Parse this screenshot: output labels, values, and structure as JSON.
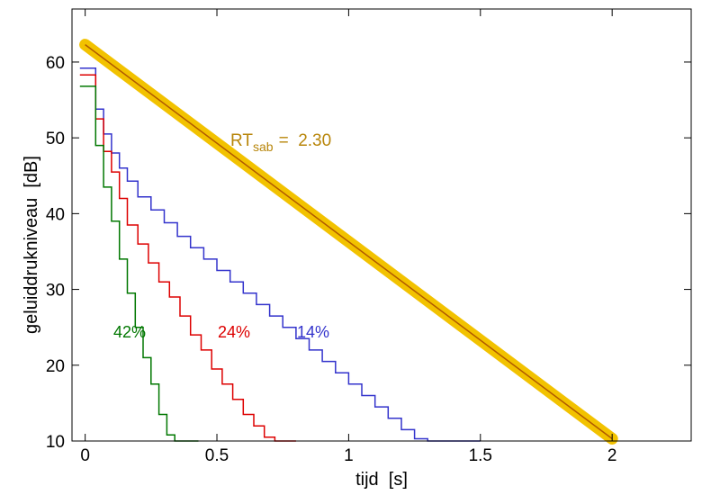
{
  "chart_data": {
    "type": "line",
    "xlabel": "tijd  [s]",
    "ylabel": "geluiddrukniveau  [dB]",
    "xlim": [
      -0.05,
      2.3
    ],
    "ylim": [
      10,
      67
    ],
    "x_ticks": [
      0,
      0.5,
      1,
      1.5,
      2
    ],
    "x_tick_labels": [
      "0",
      "0.5",
      "1",
      "1.5",
      "2"
    ],
    "y_ticks": [
      10,
      20,
      30,
      40,
      50,
      60
    ],
    "y_tick_labels": [
      "10",
      "20",
      "30",
      "40",
      "50",
      "60"
    ],
    "grid": false,
    "series": [
      {
        "name": "14%",
        "label_text": "14%",
        "color": "#3333cc",
        "style": "step",
        "x": [
          -0.02,
          0.04,
          0.04,
          0.07,
          0.07,
          0.1,
          0.1,
          0.13,
          0.13,
          0.16,
          0.16,
          0.2,
          0.2,
          0.25,
          0.25,
          0.3,
          0.3,
          0.35,
          0.35,
          0.4,
          0.4,
          0.45,
          0.45,
          0.5,
          0.5,
          0.55,
          0.55,
          0.6,
          0.6,
          0.65,
          0.65,
          0.7,
          0.7,
          0.75,
          0.75,
          0.8,
          0.8,
          0.85,
          0.85,
          0.9,
          0.9,
          0.95,
          0.95,
          1.0,
          1.0,
          1.05,
          1.05,
          1.1,
          1.1,
          1.15,
          1.15,
          1.2,
          1.2,
          1.25,
          1.25,
          1.3,
          1.3,
          1.35,
          1.35,
          1.4,
          1.4,
          1.45,
          1.45,
          1.5
        ],
        "y": [
          59.2,
          59.2,
          53.8,
          53.8,
          50.5,
          50.5,
          48.0,
          48.0,
          46.0,
          46.0,
          44.3,
          44.3,
          42.2,
          42.2,
          40.5,
          40.5,
          38.8,
          38.8,
          37.0,
          37.0,
          35.5,
          35.5,
          34.0,
          34.0,
          32.5,
          32.5,
          31.0,
          31.0,
          29.5,
          29.5,
          28.0,
          28.0,
          26.5,
          26.5,
          25.0,
          25.0,
          23.5,
          23.5,
          22.0,
          22.0,
          20.5,
          20.5,
          19.0,
          19.0,
          17.5,
          17.5,
          16.0,
          16.0,
          14.5,
          14.5,
          13.0,
          13.0,
          11.5,
          11.5,
          10.3,
          10.3,
          10.0,
          10.0,
          10.0,
          10.0,
          10.0,
          10.0,
          10.0,
          10.0
        ]
      },
      {
        "name": "24%",
        "label_text": "24%",
        "color": "#dd0000",
        "style": "step",
        "x": [
          -0.02,
          0.04,
          0.04,
          0.07,
          0.07,
          0.1,
          0.1,
          0.13,
          0.13,
          0.16,
          0.16,
          0.2,
          0.2,
          0.24,
          0.24,
          0.28,
          0.28,
          0.32,
          0.32,
          0.36,
          0.36,
          0.4,
          0.4,
          0.44,
          0.44,
          0.48,
          0.48,
          0.52,
          0.52,
          0.56,
          0.56,
          0.6,
          0.6,
          0.64,
          0.64,
          0.68,
          0.68,
          0.72,
          0.72,
          0.76,
          0.76,
          0.8
        ],
        "y": [
          58.3,
          58.3,
          52.5,
          52.5,
          48.2,
          48.2,
          45.5,
          45.5,
          42.0,
          42.0,
          38.5,
          38.5,
          36.0,
          36.0,
          33.5,
          33.5,
          31.0,
          31.0,
          29.0,
          29.0,
          26.5,
          26.5,
          24.0,
          24.0,
          22.0,
          22.0,
          19.5,
          19.5,
          17.5,
          17.5,
          15.5,
          15.5,
          13.5,
          13.5,
          12.0,
          12.0,
          10.5,
          10.5,
          10.0,
          10.0,
          10.0,
          10.0
        ]
      },
      {
        "name": "42%",
        "label_text": "42%",
        "color": "#007700",
        "style": "step",
        "x": [
          -0.02,
          0.04,
          0.04,
          0.07,
          0.07,
          0.1,
          0.1,
          0.13,
          0.13,
          0.16,
          0.16,
          0.19,
          0.19,
          0.22,
          0.22,
          0.25,
          0.25,
          0.28,
          0.28,
          0.31,
          0.31,
          0.34,
          0.34,
          0.37,
          0.37,
          0.4,
          0.4,
          0.43
        ],
        "y": [
          56.8,
          56.8,
          49.0,
          49.0,
          43.5,
          43.5,
          39.0,
          39.0,
          34.0,
          34.0,
          29.5,
          29.5,
          25.0,
          25.0,
          21.0,
          21.0,
          17.5,
          17.5,
          13.5,
          13.5,
          10.8,
          10.8,
          10.0,
          10.0,
          10.0,
          10.0,
          10.0,
          10.0
        ]
      },
      {
        "name": "RT_sab",
        "color_highlight": "#f2c200",
        "color_line": "#b05a00",
        "style": "line",
        "x": [
          0,
          2.0
        ],
        "y": [
          62.3,
          10.3
        ]
      }
    ],
    "annotations": {
      "rt_label_main": "RT",
      "rt_label_sub": "sab",
      "rt_label_value": "=  2.30",
      "rt_label_color": "#b8860b"
    }
  }
}
